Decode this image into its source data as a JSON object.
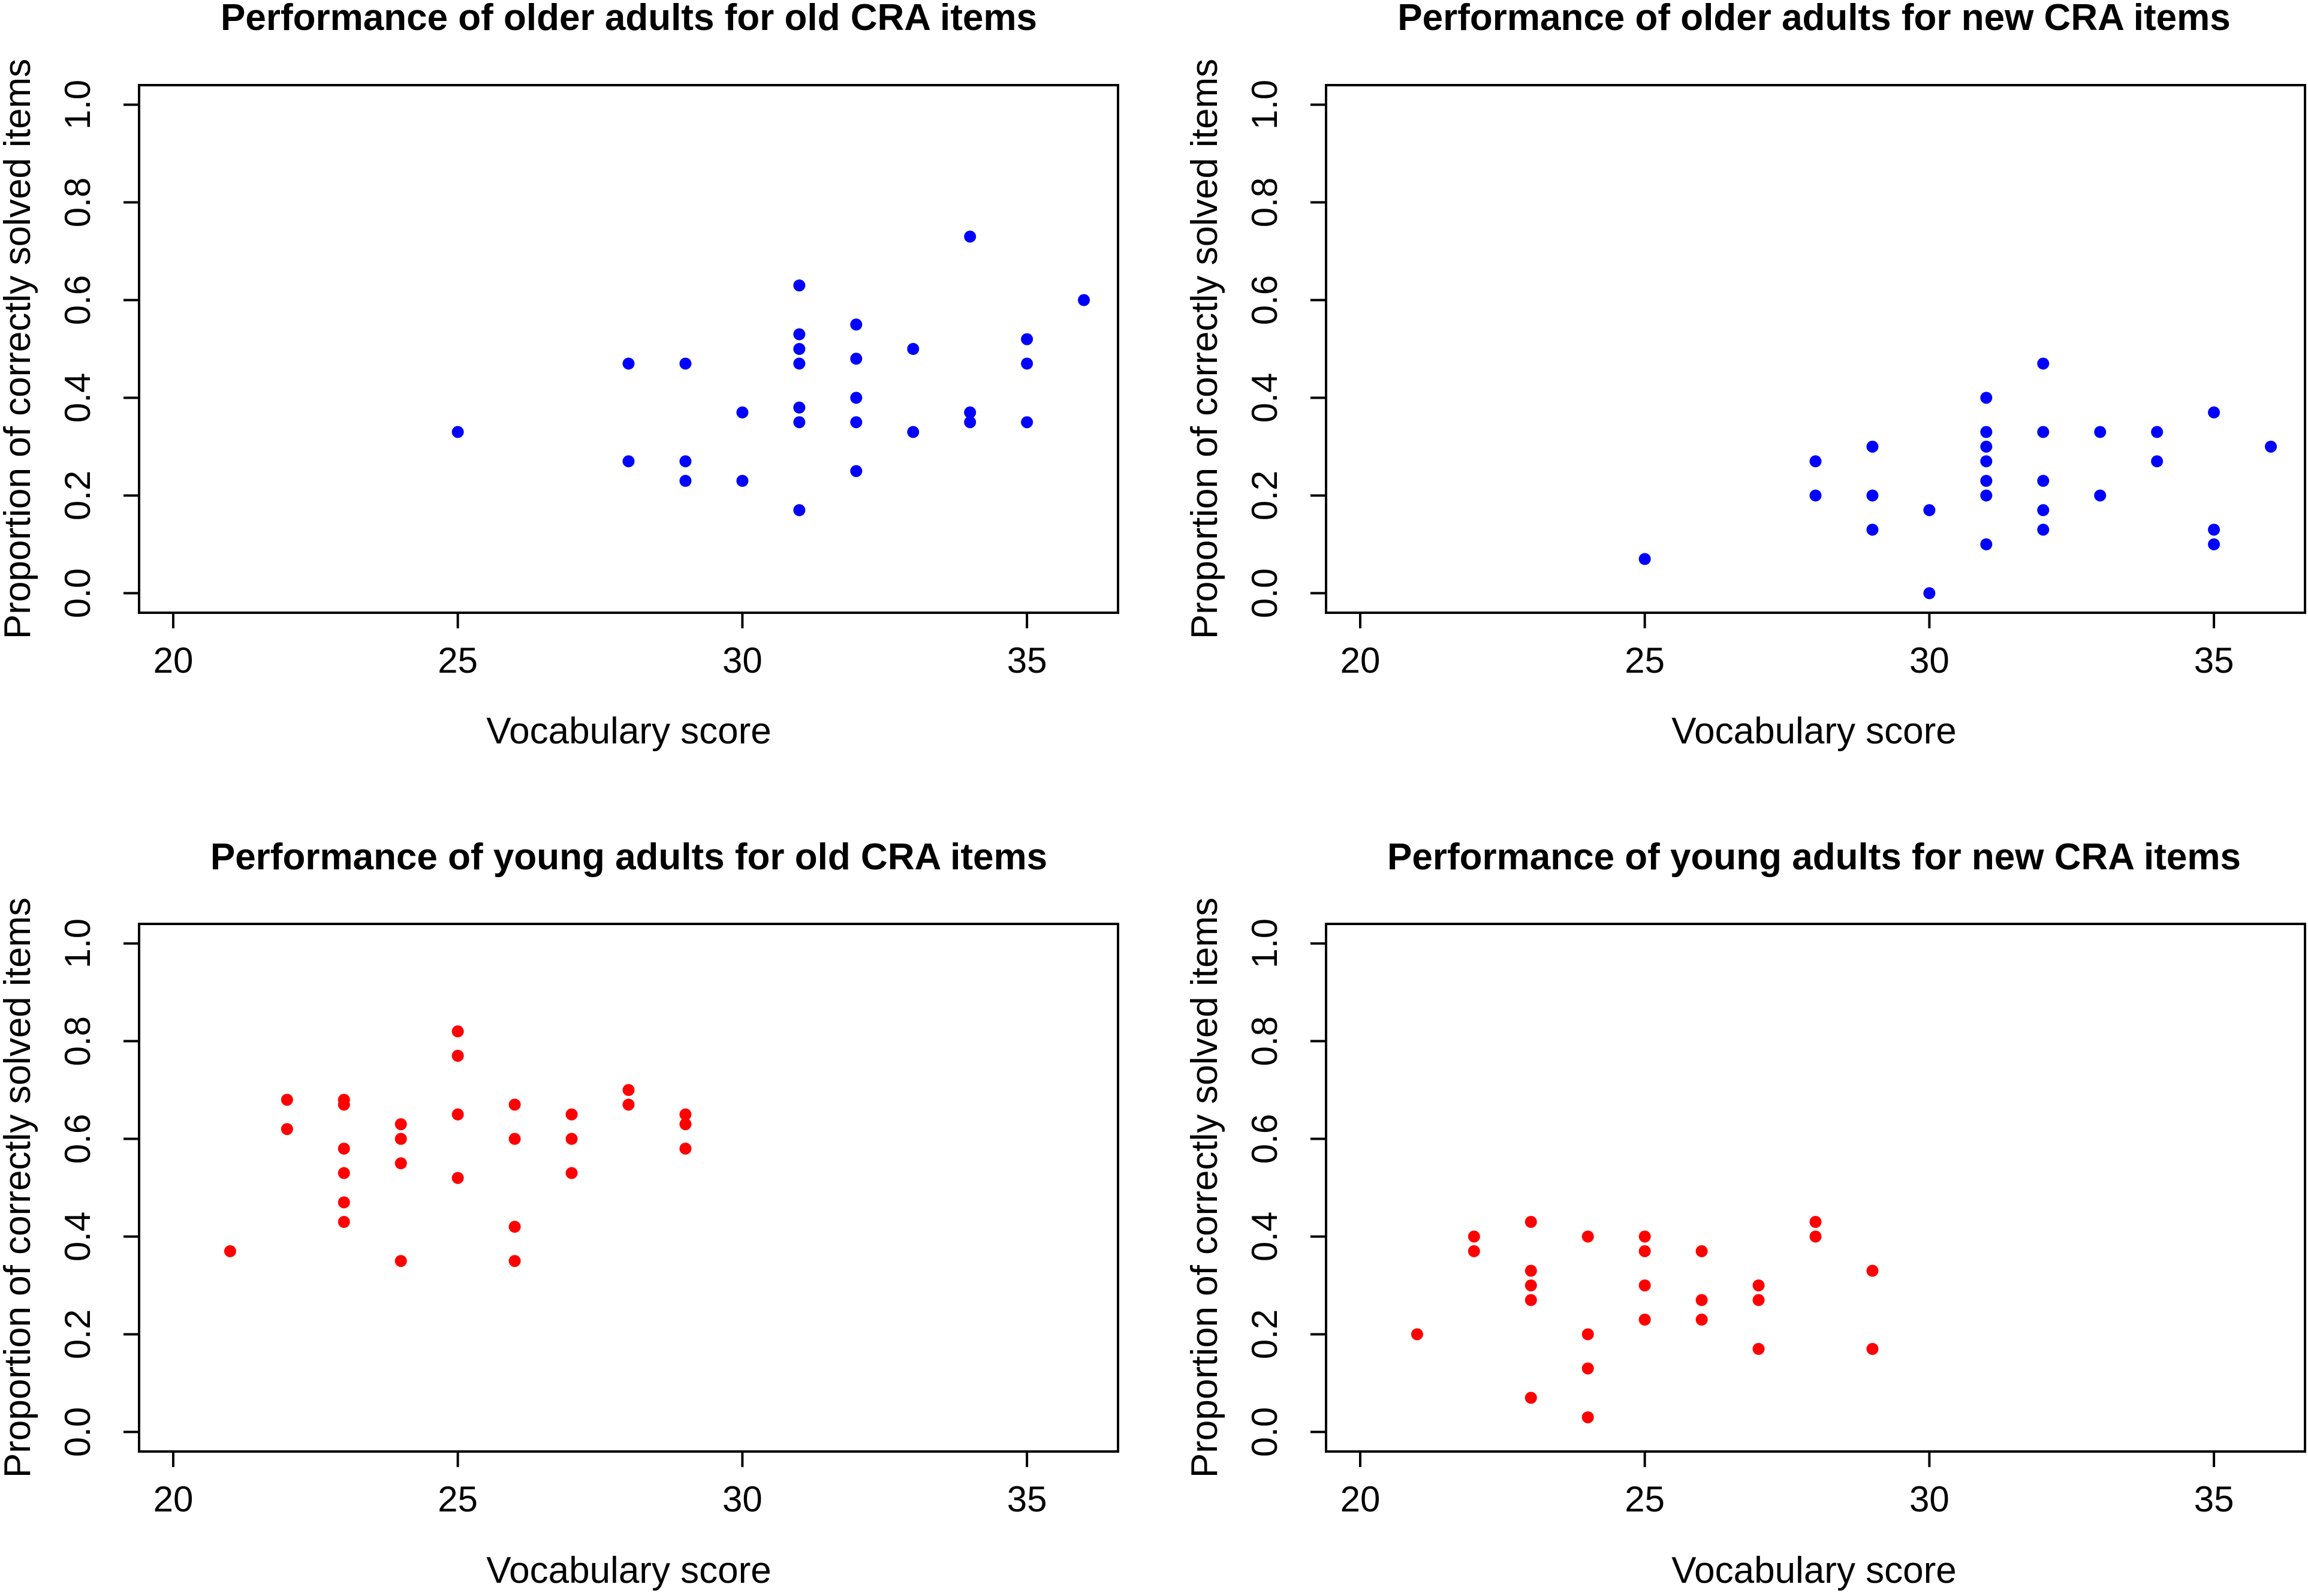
{
  "chart_data": [
    {
      "type": "scatter",
      "title": "Performance of older adults for old CRA items",
      "xlabel": "Vocabulary score",
      "ylabel": "Proportion of correctly solved items",
      "xlim": [
        19.4,
        36.6
      ],
      "ylim": [
        -0.04,
        1.04
      ],
      "xticks": [
        "20",
        "25",
        "30",
        "35"
      ],
      "yticks": [
        "0.0",
        "0.2",
        "0.4",
        "0.6",
        "0.8",
        "1.0"
      ],
      "color": "#0000ff",
      "points": [
        [
          25,
          0.33
        ],
        [
          28,
          0.47
        ],
        [
          28,
          0.27
        ],
        [
          29,
          0.47
        ],
        [
          29,
          0.27
        ],
        [
          29,
          0.23
        ],
        [
          30,
          0.37
        ],
        [
          30,
          0.23
        ],
        [
          31,
          0.63
        ],
        [
          31,
          0.53
        ],
        [
          31,
          0.5
        ],
        [
          31,
          0.47
        ],
        [
          31,
          0.38
        ],
        [
          31,
          0.35
        ],
        [
          31,
          0.17
        ],
        [
          32,
          0.55
        ],
        [
          32,
          0.48
        ],
        [
          32,
          0.4
        ],
        [
          32,
          0.35
        ],
        [
          32,
          0.25
        ],
        [
          33,
          0.5
        ],
        [
          33,
          0.33
        ],
        [
          34,
          0.73
        ],
        [
          34,
          0.37
        ],
        [
          34,
          0.35
        ],
        [
          35,
          0.52
        ],
        [
          35,
          0.47
        ],
        [
          35,
          0.35
        ],
        [
          36,
          0.6
        ]
      ]
    },
    {
      "type": "scatter",
      "title": "Performance of older adults for new CRA items",
      "xlabel": "Vocabulary score",
      "ylabel": "Proportion of correctly solved items",
      "xlim": [
        19.4,
        36.6
      ],
      "ylim": [
        -0.04,
        1.04
      ],
      "xticks": [
        "20",
        "25",
        "30",
        "35"
      ],
      "yticks": [
        "0.0",
        "0.2",
        "0.4",
        "0.6",
        "0.8",
        "1.0"
      ],
      "color": "#0000ff",
      "points": [
        [
          25,
          0.07
        ],
        [
          28,
          0.27
        ],
        [
          28,
          0.2
        ],
        [
          29,
          0.3
        ],
        [
          29,
          0.2
        ],
        [
          29,
          0.13
        ],
        [
          30,
          0.17
        ],
        [
          30,
          0.0
        ],
        [
          31,
          0.4
        ],
        [
          31,
          0.33
        ],
        [
          31,
          0.3
        ],
        [
          31,
          0.27
        ],
        [
          31,
          0.23
        ],
        [
          31,
          0.2
        ],
        [
          31,
          0.1
        ],
        [
          32,
          0.47
        ],
        [
          32,
          0.33
        ],
        [
          32,
          0.23
        ],
        [
          32,
          0.17
        ],
        [
          32,
          0.13
        ],
        [
          33,
          0.33
        ],
        [
          33,
          0.2
        ],
        [
          34,
          0.33
        ],
        [
          34,
          0.27
        ],
        [
          35,
          0.37
        ],
        [
          35,
          0.13
        ],
        [
          35,
          0.1
        ],
        [
          36,
          0.3
        ]
      ]
    },
    {
      "type": "scatter",
      "title": "Performance of young adults for old CRA items",
      "xlabel": "Vocabulary score",
      "ylabel": "Proportion of correctly solved items",
      "xlim": [
        19.4,
        36.6
      ],
      "ylim": [
        -0.04,
        1.04
      ],
      "xticks": [
        "20",
        "25",
        "30",
        "35"
      ],
      "yticks": [
        "0.0",
        "0.2",
        "0.4",
        "0.6",
        "0.8",
        "1.0"
      ],
      "color": "#ff0000",
      "points": [
        [
          21,
          0.37
        ],
        [
          22,
          0.68
        ],
        [
          22,
          0.62
        ],
        [
          23,
          0.68
        ],
        [
          23,
          0.67
        ],
        [
          23,
          0.58
        ],
        [
          23,
          0.53
        ],
        [
          23,
          0.47
        ],
        [
          23,
          0.43
        ],
        [
          24,
          0.63
        ],
        [
          24,
          0.6
        ],
        [
          24,
          0.55
        ],
        [
          24,
          0.35
        ],
        [
          25,
          0.82
        ],
        [
          25,
          0.77
        ],
        [
          25,
          0.65
        ],
        [
          25,
          0.52
        ],
        [
          26,
          0.67
        ],
        [
          26,
          0.6
        ],
        [
          26,
          0.42
        ],
        [
          26,
          0.35
        ],
        [
          27,
          0.65
        ],
        [
          27,
          0.6
        ],
        [
          27,
          0.53
        ],
        [
          28,
          0.7
        ],
        [
          28,
          0.67
        ],
        [
          29,
          0.65
        ],
        [
          29,
          0.63
        ],
        [
          29,
          0.58
        ]
      ]
    },
    {
      "type": "scatter",
      "title": "Performance of young adults for new CRA items",
      "xlabel": "Vocabulary score",
      "ylabel": "Proportion of correctly solved items",
      "xlim": [
        19.4,
        36.6
      ],
      "ylim": [
        -0.04,
        1.04
      ],
      "xticks": [
        "20",
        "25",
        "30",
        "35"
      ],
      "yticks": [
        "0.0",
        "0.2",
        "0.4",
        "0.6",
        "0.8",
        "1.0"
      ],
      "color": "#ff0000",
      "points": [
        [
          21,
          0.2
        ],
        [
          22,
          0.4
        ],
        [
          22,
          0.37
        ],
        [
          23,
          0.43
        ],
        [
          23,
          0.33
        ],
        [
          23,
          0.3
        ],
        [
          23,
          0.27
        ],
        [
          23,
          0.07
        ],
        [
          24,
          0.4
        ],
        [
          24,
          0.2
        ],
        [
          24,
          0.13
        ],
        [
          24,
          0.03
        ],
        [
          25,
          0.4
        ],
        [
          25,
          0.37
        ],
        [
          25,
          0.3
        ],
        [
          25,
          0.23
        ],
        [
          26,
          0.37
        ],
        [
          26,
          0.27
        ],
        [
          26,
          0.23
        ],
        [
          27,
          0.3
        ],
        [
          27,
          0.27
        ],
        [
          27,
          0.17
        ],
        [
          28,
          0.43
        ],
        [
          28,
          0.4
        ],
        [
          29,
          0.33
        ],
        [
          29,
          0.17
        ]
      ]
    }
  ]
}
